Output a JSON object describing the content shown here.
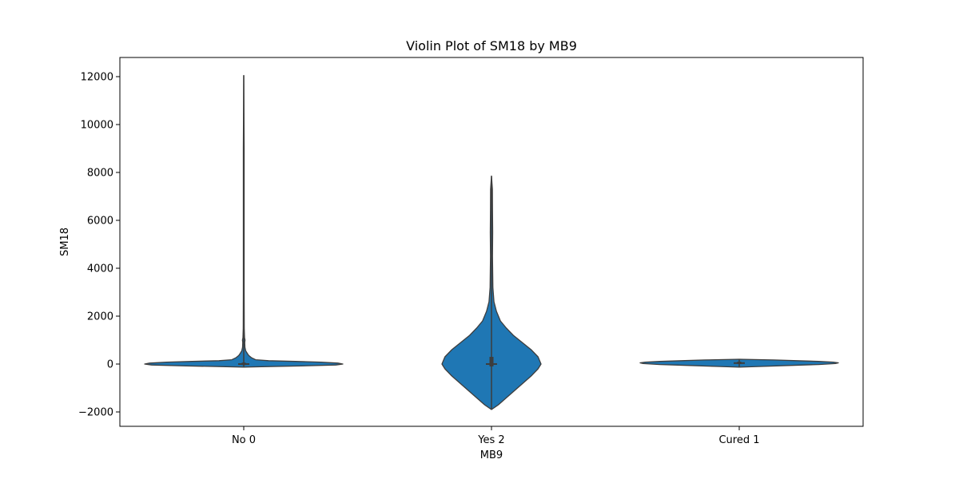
{
  "chart_data": {
    "type": "violin",
    "title": "Violin Plot of SM18 by MB9",
    "xlabel": "MB9",
    "ylabel": "SM18",
    "categories": [
      "No 0",
      "Yes 2",
      "Cured 1"
    ],
    "ylim": [
      -2600,
      12800
    ],
    "yticks": [
      -2000,
      0,
      2000,
      4000,
      6000,
      8000,
      10000,
      12000
    ],
    "ytick_labels": [
      "−2000",
      "0",
      "2000",
      "4000",
      "6000",
      "8000",
      "10000",
      "12000"
    ],
    "grid": false,
    "legend": "none",
    "violins": [
      {
        "category": "No 0",
        "min": -130,
        "max": 12050,
        "median": 0,
        "q1": -40,
        "q3": 60,
        "density": [
          [
            -130,
            0.0
          ],
          [
            -110,
            0.18
          ],
          [
            -80,
            0.58
          ],
          [
            -40,
            0.93
          ],
          [
            0,
            1.0
          ],
          [
            40,
            0.95
          ],
          [
            80,
            0.78
          ],
          [
            110,
            0.52
          ],
          [
            140,
            0.25
          ],
          [
            180,
            0.12
          ],
          [
            260,
            0.08
          ],
          [
            360,
            0.05
          ],
          [
            450,
            0.035
          ],
          [
            550,
            0.02
          ],
          [
            700,
            0.012
          ],
          [
            900,
            0.01
          ],
          [
            1000,
            0.013
          ],
          [
            1100,
            0.008
          ],
          [
            1500,
            0.005
          ],
          [
            3000,
            0.004
          ],
          [
            6000,
            0.004
          ],
          [
            9000,
            0.004
          ],
          [
            12050,
            0.0
          ]
        ]
      },
      {
        "category": "Yes 2",
        "min": -1900,
        "max": 7850,
        "median": 0,
        "q1": -100,
        "q3": 300,
        "density": [
          [
            -1900,
            0.0
          ],
          [
            -1700,
            0.07
          ],
          [
            -1300,
            0.18
          ],
          [
            -900,
            0.29
          ],
          [
            -500,
            0.4
          ],
          [
            -200,
            0.47
          ],
          [
            0,
            0.5
          ],
          [
            300,
            0.47
          ],
          [
            600,
            0.4
          ],
          [
            900,
            0.31
          ],
          [
            1200,
            0.22
          ],
          [
            1500,
            0.15
          ],
          [
            1800,
            0.09
          ],
          [
            2200,
            0.05
          ],
          [
            2600,
            0.025
          ],
          [
            3200,
            0.014
          ],
          [
            4500,
            0.01
          ],
          [
            5500,
            0.012
          ],
          [
            6500,
            0.01
          ],
          [
            7300,
            0.009
          ],
          [
            7850,
            0.0
          ]
        ]
      },
      {
        "category": "Cured 1",
        "min": -130,
        "max": 200,
        "median": 40,
        "q1": 0,
        "q3": 100,
        "density": [
          [
            -130,
            0.0
          ],
          [
            -100,
            0.22
          ],
          [
            -60,
            0.5
          ],
          [
            -20,
            0.8
          ],
          [
            20,
            0.97
          ],
          [
            50,
            1.0
          ],
          [
            80,
            0.95
          ],
          [
            110,
            0.8
          ],
          [
            140,
            0.58
          ],
          [
            170,
            0.35
          ],
          [
            200,
            0.0
          ]
        ]
      }
    ],
    "colors": {
      "violin_fill": "#1f77b4",
      "violin_edge": "#3d3d3d",
      "inner": "#3d3d3d"
    }
  }
}
